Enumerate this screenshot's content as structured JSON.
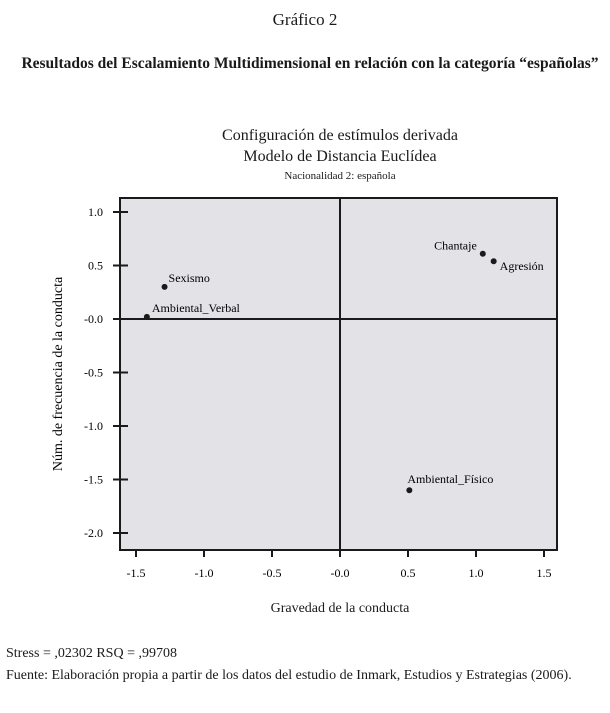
{
  "figure_label": "Gráfico 2",
  "figure_title": "Resultados del Escalamiento Multidimensional en relación con la categoría “españolas”",
  "footer": {
    "stress": "Stress = ,02302 RSQ = ,99708",
    "source": "Fuente: Elaboración propia a partir de los datos del estudio de Inmark, Estudios y Estrategias (2006)."
  },
  "colors": {
    "plot_bg": "#e3e3e7",
    "ink": "#1a1a1a"
  },
  "chart_data": {
    "type": "scatter",
    "title": "Configuración de estímulos derivada",
    "subtitle": "Modelo de Distancia Euclídea",
    "subtitle2": "Nacionalidad 2: española",
    "xlabel": "Gravedad de la conducta",
    "ylabel": "Núm. de frecuencia de la conducta",
    "xlim": [
      -1.6,
      1.6
    ],
    "ylim": [
      -2.15,
      1.12
    ],
    "xticks": [
      "-1.5",
      "-1.0",
      "-0.5",
      "-0.0",
      "0.5",
      "1.0",
      "1.5"
    ],
    "xtick_values": [
      -1.5,
      -1.0,
      -0.5,
      0,
      0.5,
      1.0,
      1.5
    ],
    "yticks": [
      "1.0",
      "0.5",
      "-0.0",
      "-0.5",
      "-1.0",
      "-1.5",
      "-2.0"
    ],
    "ytick_values": [
      1.0,
      0.5,
      0,
      -0.5,
      -1.0,
      -1.5,
      -2.0
    ],
    "grid": false,
    "points": [
      {
        "label": "Sexismo",
        "x": -1.29,
        "y": 0.3
      },
      {
        "label": "Ambiental_Verbal",
        "x": -1.42,
        "y": 0.02
      },
      {
        "label": "Chantaje",
        "x": 1.05,
        "y": 0.61
      },
      {
        "label": "Agresión",
        "x": 1.13,
        "y": 0.54
      },
      {
        "label": "Ambiental_Físico",
        "x": 0.51,
        "y": -1.6
      }
    ]
  }
}
